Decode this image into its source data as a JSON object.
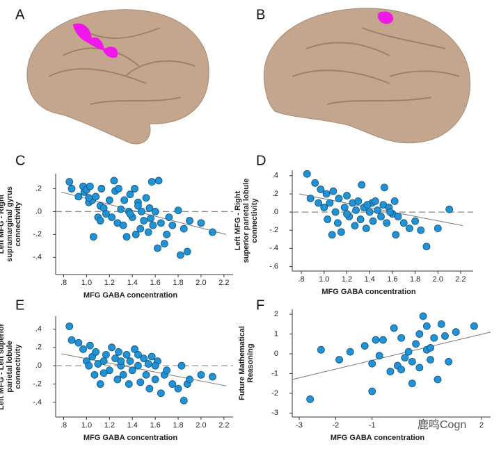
{
  "panel_labels": [
    "A",
    "B"
  ],
  "watermark": "鹿鸣Cogn",
  "chart_data": [
    {
      "type": "scatter",
      "label": "C",
      "y_label": [
        "Left MFG - Right",
        "supramarginal gyrus",
        "connectivity"
      ],
      "x_label": "MFG GABA concentration",
      "x": [
        0.85,
        0.87,
        0.93,
        0.97,
        0.98,
        1.0,
        1.02,
        1.03,
        1.05,
        1.06,
        1.08,
        1.1,
        1.12,
        1.13,
        1.15,
        1.17,
        1.2,
        1.22,
        1.24,
        1.25,
        1.27,
        1.28,
        1.3,
        1.32,
        1.33,
        1.35,
        1.37,
        1.38,
        1.4,
        1.42,
        1.43,
        1.45,
        1.47,
        1.48,
        1.5,
        1.52,
        1.54,
        1.55,
        1.57,
        1.58,
        1.6,
        1.62,
        1.63,
        1.65,
        1.7,
        1.72,
        1.75,
        1.8,
        1.82,
        1.85,
        1.88,
        1.9,
        2.0,
        2.1,
        1.68,
        1.38,
        1.12,
        1.02,
        1.45,
        1.56
      ],
      "y": [
        0.26,
        0.2,
        0.13,
        0.22,
        0.17,
        0.19,
        0.08,
        0.22,
        0.1,
        -0.22,
        0.13,
        -0.05,
        0.05,
        0.2,
        0.03,
        -0.02,
        0.1,
        -0.05,
        0.27,
        0.18,
        -0.1,
        0.2,
        0.02,
        -0.12,
        0.1,
        -0.22,
        0.0,
        0.15,
        -0.05,
        0.2,
        -0.2,
        0.08,
        -0.15,
        0.0,
        -0.08,
        0.12,
        -0.18,
        0.03,
        0.26,
        -0.12,
        0.0,
        -0.32,
        0.27,
        -0.1,
        -0.2,
        -0.05,
        -0.12,
        0.01,
        -0.38,
        -0.15,
        -0.35,
        -0.08,
        -0.1,
        -0.18,
        -0.28,
        -0.02,
        -0.08,
        0.12,
        0.05,
        -0.06
      ],
      "fit_line": {
        "x": [
          0.78,
          2.22
        ],
        "y": [
          0.17,
          -0.2
        ]
      },
      "reference_line": 0,
      "xlim": [
        0.73,
        2.28
      ],
      "ylim": [
        -0.55,
        0.33
      ],
      "xticks": [
        {
          "value": 0.8,
          "label": ".8"
        },
        {
          "value": 1.0,
          "label": "1.0"
        },
        1.2,
        1.4,
        1.6,
        1.8,
        {
          "value": 2.0,
          "label": "2.0"
        },
        2.2
      ],
      "yticks": [
        {
          "value": 0.2,
          "label": ".2"
        },
        {
          "value": 0,
          "label": ".0"
        },
        {
          "value": -0.2,
          "label": "-.2"
        },
        {
          "value": -0.4,
          "label": "-.4"
        }
      ],
      "color": "#1f93d6"
    },
    {
      "type": "scatter",
      "label": "D",
      "y_label": [
        "Left MFG - Right",
        "superior parietal lobule",
        "connectivity"
      ],
      "x_label": "MFG GABA concentration",
      "x": [
        0.85,
        0.88,
        0.92,
        0.95,
        0.97,
        1.0,
        1.02,
        1.03,
        1.05,
        1.07,
        1.08,
        1.1,
        1.12,
        1.13,
        1.15,
        1.18,
        1.2,
        1.22,
        1.25,
        1.27,
        1.28,
        1.3,
        1.32,
        1.33,
        1.35,
        1.37,
        1.4,
        1.42,
        1.43,
        1.45,
        1.47,
        1.5,
        1.52,
        1.53,
        1.55,
        1.57,
        1.6,
        1.62,
        1.63,
        1.65,
        1.7,
        1.75,
        1.8,
        1.85,
        1.9,
        2.0,
        2.1,
        1.2,
        1.38,
        1.58
      ],
      "y": [
        0.42,
        0.15,
        0.32,
        0.1,
        0.25,
        0.05,
        0.2,
        -0.08,
        0.1,
        -0.25,
        0.23,
        0.0,
        -0.12,
        0.15,
        -0.22,
        0.05,
        0.18,
        -0.05,
        0.1,
        -0.15,
        0.02,
        0.12,
        -0.08,
        0.3,
        0.05,
        -0.18,
        0.0,
        0.1,
        -0.1,
        0.12,
        0.02,
        -0.05,
        0.08,
        0.27,
        -0.12,
        0.05,
        -0.02,
        0.12,
        -0.25,
        -0.05,
        -0.12,
        -0.18,
        -0.1,
        -0.2,
        -0.38,
        -0.18,
        0.03,
        -0.02,
        0.08,
        0.0
      ],
      "fit_line": {
        "x": [
          0.78,
          2.22
        ],
        "y": [
          0.2,
          -0.15
        ]
      },
      "reference_line": 0,
      "xlim": [
        0.72,
        2.31
      ],
      "ylim": [
        -0.65,
        0.46
      ],
      "xticks": [
        {
          "value": 0.8,
          "label": ".8"
        },
        {
          "value": 1.0,
          "label": "1.0"
        },
        1.2,
        1.4,
        1.6,
        1.8,
        {
          "value": 2.0,
          "label": "2.0"
        },
        2.2
      ],
      "yticks": [
        {
          "value": 0.4,
          "label": ".4"
        },
        {
          "value": 0.2,
          "label": ".2"
        },
        {
          "value": 0,
          "label": ".0"
        },
        {
          "value": -0.2,
          "label": "-.2"
        },
        {
          "value": -0.4,
          "label": "-.4"
        },
        {
          "value": -0.6,
          "label": "-.6"
        }
      ],
      "color": "#1f93d6"
    },
    {
      "type": "scatter",
      "label": "E",
      "y_label": [
        "Left MFG - Left superior",
        "parietal lobule",
        "connectivity"
      ],
      "x_label": "MFG GABA concentration",
      "x": [
        0.85,
        0.87,
        0.93,
        0.97,
        1.0,
        1.02,
        1.03,
        1.05,
        1.07,
        1.08,
        1.1,
        1.12,
        1.15,
        1.17,
        1.2,
        1.22,
        1.25,
        1.27,
        1.28,
        1.3,
        1.32,
        1.35,
        1.37,
        1.38,
        1.4,
        1.42,
        1.45,
        1.47,
        1.5,
        1.52,
        1.54,
        1.55,
        1.57,
        1.6,
        1.62,
        1.65,
        1.68,
        1.7,
        1.75,
        1.8,
        1.83,
        1.85,
        1.88,
        1.9,
        2.0,
        2.1,
        1.45,
        1.3,
        1.6,
        1.15
      ],
      "y": [
        0.43,
        0.28,
        0.25,
        0.18,
        0.05,
        0.0,
        0.22,
        0.1,
        -0.1,
        0.15,
        0.02,
        -0.2,
        0.05,
        0.12,
        -0.05,
        0.2,
        0.08,
        -0.15,
        0.15,
        0.0,
        -0.1,
        0.12,
        -0.2,
        0.05,
        -0.05,
        0.18,
        0.0,
        -0.18,
        0.08,
        -0.1,
        0.02,
        -0.25,
        0.1,
        -0.15,
        0.05,
        -0.3,
        -0.1,
        -0.05,
        -0.2,
        -0.25,
        0.0,
        -0.38,
        -0.2,
        -0.15,
        -0.1,
        -0.12,
        0.12,
        0.05,
        0.0,
        -0.08
      ],
      "fit_line": {
        "x": [
          0.78,
          2.22
        ],
        "y": [
          0.13,
          -0.22
        ]
      },
      "reference_line": 0,
      "xlim": [
        0.73,
        2.28
      ],
      "ylim": [
        -0.56,
        0.54
      ],
      "xticks": [
        {
          "value": 0.8,
          "label": ".8"
        },
        {
          "value": 1.0,
          "label": "1.0"
        },
        1.2,
        1.4,
        1.6,
        1.8,
        {
          "value": 2.0,
          "label": "2.0"
        },
        2.2
      ],
      "yticks": [
        {
          "value": 0.4,
          "label": ".4"
        },
        {
          "value": 0.2,
          "label": ".2"
        },
        {
          "value": 0,
          "label": ".0"
        },
        {
          "value": -0.2,
          "label": "-.2"
        },
        {
          "value": -0.4,
          "label": "-.4"
        }
      ],
      "color": "#1f93d6"
    },
    {
      "type": "scatter",
      "label": "F",
      "y_label": [
        "Future Mathematical",
        "Reasoning"
      ],
      "x_label": "MFG GABA concentration",
      "x": [
        -2.7,
        -2.4,
        -1.9,
        -1.6,
        -1.2,
        -1.0,
        -1.0,
        -0.9,
        -0.7,
        -0.5,
        -0.4,
        -0.3,
        -0.2,
        -0.1,
        0.0,
        0.1,
        0.1,
        0.2,
        0.3,
        0.4,
        0.5,
        0.5,
        0.6,
        0.7,
        0.8,
        0.9,
        1.0,
        1.1,
        1.3,
        1.8,
        -0.8,
        0.3,
        0.6,
        -0.2
      ],
      "y": [
        -2.3,
        0.2,
        -0.3,
        0.1,
        0.4,
        -0.5,
        -1.9,
        0.7,
        0.7,
        -0.9,
        1.3,
        -0.6,
        0.8,
        -0.2,
        0.1,
        -0.4,
        -1.5,
        0.5,
        -0.7,
        1.9,
        0.2,
        1.4,
        -0.3,
        0.8,
        -1.3,
        1.5,
        0.9,
        -0.4,
        1.1,
        1.4,
        -0.1,
        1.0,
        0.3,
        -0.8
      ],
      "fit_line": {
        "x": [
          -3.19,
          2.25
        ],
        "y": [
          -1.3,
          1.1
        ]
      },
      "xlim": [
        -3.19,
        2.25
      ],
      "ylim": [
        -3.2,
        2.25
      ],
      "xticks": [
        -3,
        -2,
        -1,
        2
      ],
      "yticks": [
        2,
        1,
        0,
        -1,
        -2,
        -3
      ],
      "color": "#1f93d6"
    }
  ]
}
